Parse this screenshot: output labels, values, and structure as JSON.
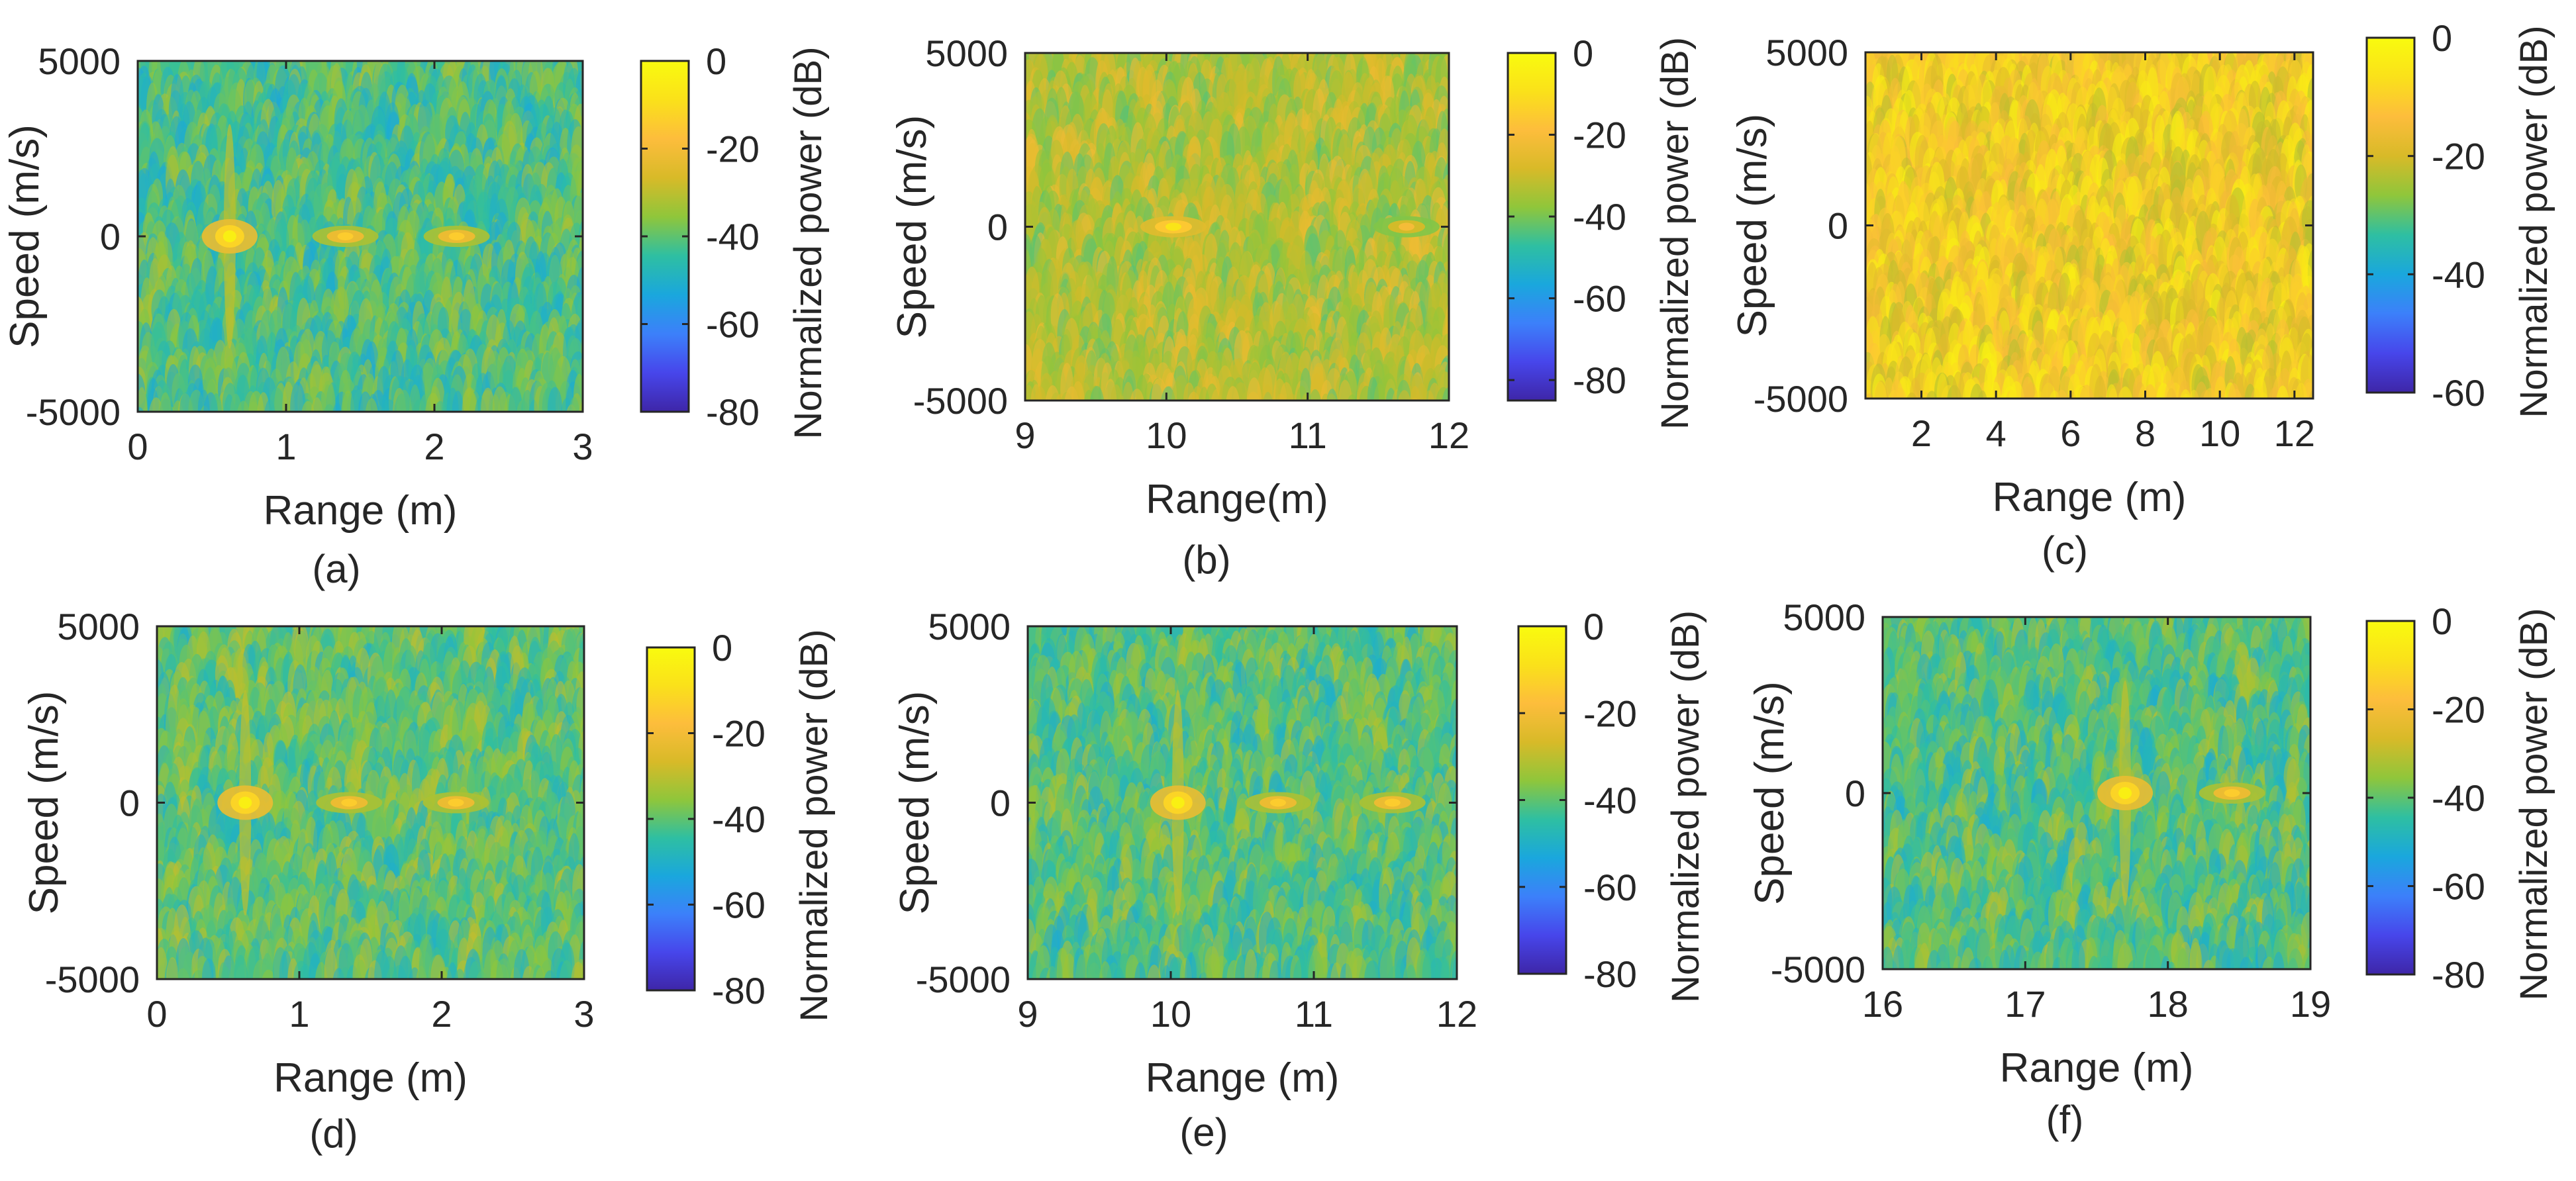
{
  "colors": {
    "colormap": [
      "#3e26a8",
      "#4746eb",
      "#3c80fa",
      "#1aa7dd",
      "#2ebfa2",
      "#8fc63b",
      "#d8ba28",
      "#fdbd3c",
      "#fae11a",
      "#f9fb0e"
    ],
    "axis": "#262626",
    "noise_base": "#2eb4b0"
  },
  "chart_data": [
    {
      "id": "a",
      "type": "heatmap",
      "caption": "(a)",
      "xlabel": "Range (m)",
      "ylabel": "Speed (m/s)",
      "colorbar_label": "Normalized power (dB)",
      "xlim": [
        0,
        3
      ],
      "xticks": [
        "0",
        "1",
        "2",
        "3"
      ],
      "xtick_values": [
        0,
        1,
        2,
        3
      ],
      "ylim": [
        -5000,
        5000
      ],
      "yticks": [
        "5000",
        "0",
        "-5000"
      ],
      "ytick_values": [
        5000,
        0,
        -5000
      ],
      "clim": [
        -80,
        0
      ],
      "cticks": [
        "0",
        "-20",
        "-40",
        "-60",
        "-80"
      ],
      "ctick_values": [
        0,
        -20,
        -40,
        -60,
        -80
      ],
      "noise_floor_db": -42,
      "peaks": [
        {
          "range": 0.62,
          "speed": 0,
          "power_db": -8
        },
        {
          "range": 1.4,
          "speed": 0,
          "power_db": -18
        },
        {
          "range": 2.15,
          "speed": 0,
          "power_db": -18
        }
      ]
    },
    {
      "id": "b",
      "type": "heatmap",
      "caption": "(b)",
      "xlabel": "Range(m)",
      "ylabel": "Speed (m/s)",
      "colorbar_label": "Normalized power (dB)",
      "xlim": [
        9,
        12
      ],
      "xticks": [
        "9",
        "10",
        "11",
        "12"
      ],
      "xtick_values": [
        9,
        10,
        11,
        12
      ],
      "ylim": [
        -5000,
        5000
      ],
      "yticks": [
        "5000",
        "0",
        "-5000"
      ],
      "ytick_values": [
        5000,
        0,
        -5000
      ],
      "clim": [
        -85,
        0
      ],
      "cticks": [
        "0",
        "-20",
        "-40",
        "-60",
        "-80"
      ],
      "ctick_values": [
        0,
        -20,
        -40,
        -60,
        -80
      ],
      "noise_floor_db": -33,
      "peaks": [
        {
          "range": 10.05,
          "speed": 0,
          "power_db": -12
        },
        {
          "range": 11.7,
          "speed": 0,
          "power_db": -25
        }
      ]
    },
    {
      "id": "c",
      "type": "heatmap",
      "caption": "(c)",
      "xlabel": "Range (m)",
      "ylabel": "Speed (m/s)",
      "colorbar_label": "Normalized power (dB)",
      "xlim": [
        0.5,
        12.5
      ],
      "xticks": [
        "2",
        "4",
        "6",
        "8",
        "10",
        "12"
      ],
      "xtick_values": [
        2,
        4,
        6,
        8,
        10,
        12
      ],
      "ylim": [
        -5000,
        5000
      ],
      "yticks": [
        "5000",
        "0",
        "-5000"
      ],
      "ytick_values": [
        5000,
        0,
        -5000
      ],
      "clim": [
        -60,
        0
      ],
      "cticks": [
        "0",
        "-20",
        "-40",
        "-60"
      ],
      "ctick_values": [
        0,
        -20,
        -40,
        -60
      ],
      "noise_floor_db": -13,
      "peaks": []
    },
    {
      "id": "d",
      "type": "heatmap",
      "caption": "(d)",
      "xlabel": "Range (m)",
      "ylabel": "Speed (m/s)",
      "colorbar_label": "Normalized power (dB)",
      "xlim": [
        0,
        3
      ],
      "xticks": [
        "0",
        "1",
        "2",
        "3"
      ],
      "xtick_values": [
        0,
        1,
        2,
        3
      ],
      "ylim": [
        -5000,
        5000
      ],
      "yticks": [
        "5000",
        "0",
        "-5000"
      ],
      "ytick_values": [
        5000,
        0,
        -5000
      ],
      "clim": [
        -80,
        0
      ],
      "cticks": [
        "0",
        "-20",
        "-40",
        "-60",
        "-80"
      ],
      "ctick_values": [
        0,
        -20,
        -40,
        -60,
        -80
      ],
      "noise_floor_db": -40,
      "peaks": [
        {
          "range": 0.62,
          "speed": 0,
          "power_db": -8
        },
        {
          "range": 1.35,
          "speed": 0,
          "power_db": -18
        },
        {
          "range": 2.1,
          "speed": 0,
          "power_db": -18
        }
      ]
    },
    {
      "id": "e",
      "type": "heatmap",
      "caption": "(e)",
      "xlabel": "Range (m)",
      "ylabel": "Speed (m/s)",
      "colorbar_label": "Normalized power (dB)",
      "xlim": [
        9,
        12
      ],
      "xticks": [
        "9",
        "10",
        "11",
        "12"
      ],
      "xtick_values": [
        9,
        10,
        11,
        12
      ],
      "ylim": [
        -5000,
        5000
      ],
      "yticks": [
        "5000",
        "0",
        "-5000"
      ],
      "ytick_values": [
        5000,
        0,
        -5000
      ],
      "clim": [
        -80,
        0
      ],
      "cticks": [
        "0",
        "-20",
        "-40",
        "-60",
        "-80"
      ],
      "ctick_values": [
        0,
        -20,
        -40,
        -60,
        -80
      ],
      "noise_floor_db": -41,
      "peaks": [
        {
          "range": 10.05,
          "speed": 0,
          "power_db": -8
        },
        {
          "range": 10.75,
          "speed": 0,
          "power_db": -18
        },
        {
          "range": 11.55,
          "speed": 0,
          "power_db": -18
        }
      ]
    },
    {
      "id": "f",
      "type": "heatmap",
      "caption": "(f)",
      "xlabel": "Range (m)",
      "ylabel": "Speed (m/s)",
      "colorbar_label": "Normalized power (dB)",
      "xlim": [
        16,
        19
      ],
      "xticks": [
        "16",
        "17",
        "18",
        "19"
      ],
      "xtick_values": [
        16,
        17,
        18,
        19
      ],
      "ylim": [
        -5000,
        5000
      ],
      "yticks": [
        "5000",
        "0",
        "-5000"
      ],
      "ytick_values": [
        5000,
        0,
        -5000
      ],
      "clim": [
        -80,
        0
      ],
      "cticks": [
        "0",
        "-20",
        "-40",
        "-60",
        "-80"
      ],
      "ctick_values": [
        0,
        -20,
        -40,
        -60,
        -80
      ],
      "noise_floor_db": -41,
      "peaks": [
        {
          "range": 17.7,
          "speed": 0,
          "power_db": -8
        },
        {
          "range": 18.45,
          "speed": 0,
          "power_db": -18
        }
      ]
    }
  ]
}
